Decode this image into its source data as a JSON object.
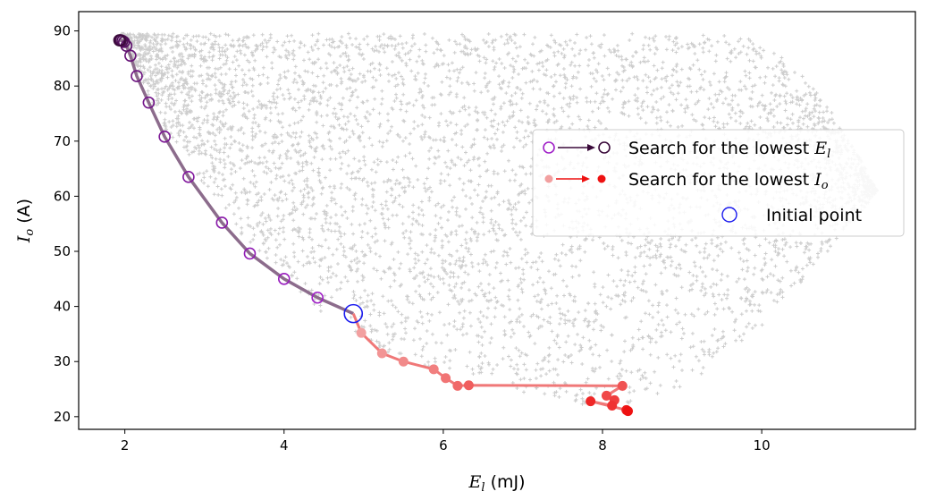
{
  "chart_data": {
    "type": "scatter",
    "title": "",
    "xlabel": {
      "symbol": "E",
      "subscript": "l",
      "unit": " (mJ)"
    },
    "ylabel": {
      "symbol": "I",
      "subscript": "o",
      "unit": " (A)"
    },
    "xlim": [
      1.42,
      11.93
    ],
    "ylim": [
      17.7,
      93.5
    ],
    "xticks": [
      2,
      4,
      6,
      8,
      10
    ],
    "yticks": [
      20,
      30,
      40,
      50,
      60,
      70,
      80,
      90
    ],
    "grid": false,
    "legend_position": "right",
    "colors": {
      "background_points": "#c8c8c8",
      "search_el_start": "#a020c8",
      "search_el_end": "#3a0a3a",
      "search_el_line": "#8c6c8c",
      "search_io_start": "#f2a0a0",
      "search_io_end": "#ee1111",
      "initial_point": "#1a1aee"
    },
    "background_cloud": {
      "description_note": "",
      "upper_envelope_y": 89.5,
      "lower_envelope": [
        [
          1.95,
          89
        ],
        [
          2.5,
          72
        ],
        [
          3.5,
          52
        ],
        [
          4.5,
          38
        ],
        [
          5.5,
          30
        ],
        [
          6.5,
          26
        ],
        [
          7.2,
          23
        ],
        [
          7.8,
          22
        ],
        [
          8.3,
          22
        ],
        [
          8.8,
          25
        ],
        [
          9.4,
          29
        ],
        [
          10.0,
          33
        ],
        [
          10.6,
          39
        ],
        [
          11.1,
          45
        ],
        [
          11.5,
          60
        ],
        [
          11.4,
          80
        ],
        [
          11.0,
          85
        ],
        [
          10.0,
          88
        ],
        [
          8.0,
          89.5
        ]
      ]
    },
    "series": [
      {
        "name_symbol": "E",
        "name_subscript": "l",
        "name_prefix": "Search for the lowest ",
        "marker": "hollow-circle",
        "x": [
          4.42,
          4.0,
          3.57,
          3.22,
          2.8,
          2.5,
          2.3,
          2.15,
          2.07,
          2.02,
          1.99,
          1.97,
          1.95,
          1.94,
          1.93
        ],
        "y": [
          41.6,
          45.0,
          49.6,
          55.2,
          63.5,
          70.8,
          77.0,
          81.8,
          85.5,
          87.3,
          88.0,
          88.2,
          88.3,
          88.3,
          88.3
        ]
      },
      {
        "name_symbol": "I",
        "name_subscript": "o",
        "name_prefix": "Search for the lowest ",
        "marker": "filled-circle",
        "x": [
          4.97,
          5.23,
          5.5,
          5.88,
          6.03,
          6.18,
          6.32,
          8.25,
          8.05,
          8.15,
          8.12,
          7.85,
          8.3,
          8.32
        ],
        "y": [
          35.2,
          31.5,
          30.0,
          28.6,
          27.0,
          25.6,
          25.7,
          25.6,
          23.8,
          23.0,
          22.0,
          22.8,
          21.2,
          21.0
        ]
      }
    ],
    "initial_point": {
      "label": "Initial point",
      "x": 4.87,
      "y": 38.7
    }
  }
}
